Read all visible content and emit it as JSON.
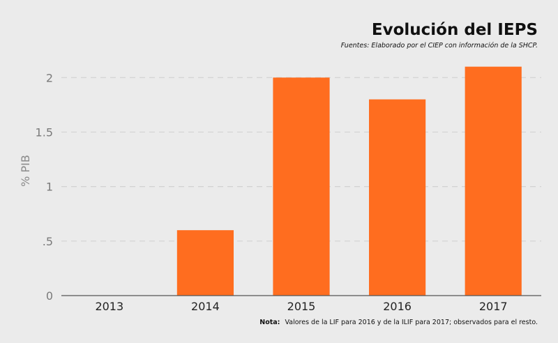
{
  "chart_data": {
    "type": "bar",
    "title": "Evolución del IEPS",
    "subtitle": "Fuentes: Elaborado por el CIEP con información de la SHCP.",
    "ylabel": "% PIB",
    "xlabel": "",
    "categories": [
      "2013",
      "2014",
      "2015",
      "2016",
      "2017"
    ],
    "values": [
      0,
      0.6,
      2.0,
      1.8,
      2.1
    ],
    "ylim": [
      0,
      2.2
    ],
    "yticks": [
      0,
      0.5,
      1,
      1.5,
      2
    ],
    "ytick_labels": [
      "0",
      ".5",
      "1",
      "1.5",
      "2"
    ],
    "grid": true,
    "bar_color": "#ff6d1f",
    "note_label": "Nota:",
    "note_text": "Valores de la LIF para 2016 y de la ILIF para 2017; observados para el resto."
  }
}
